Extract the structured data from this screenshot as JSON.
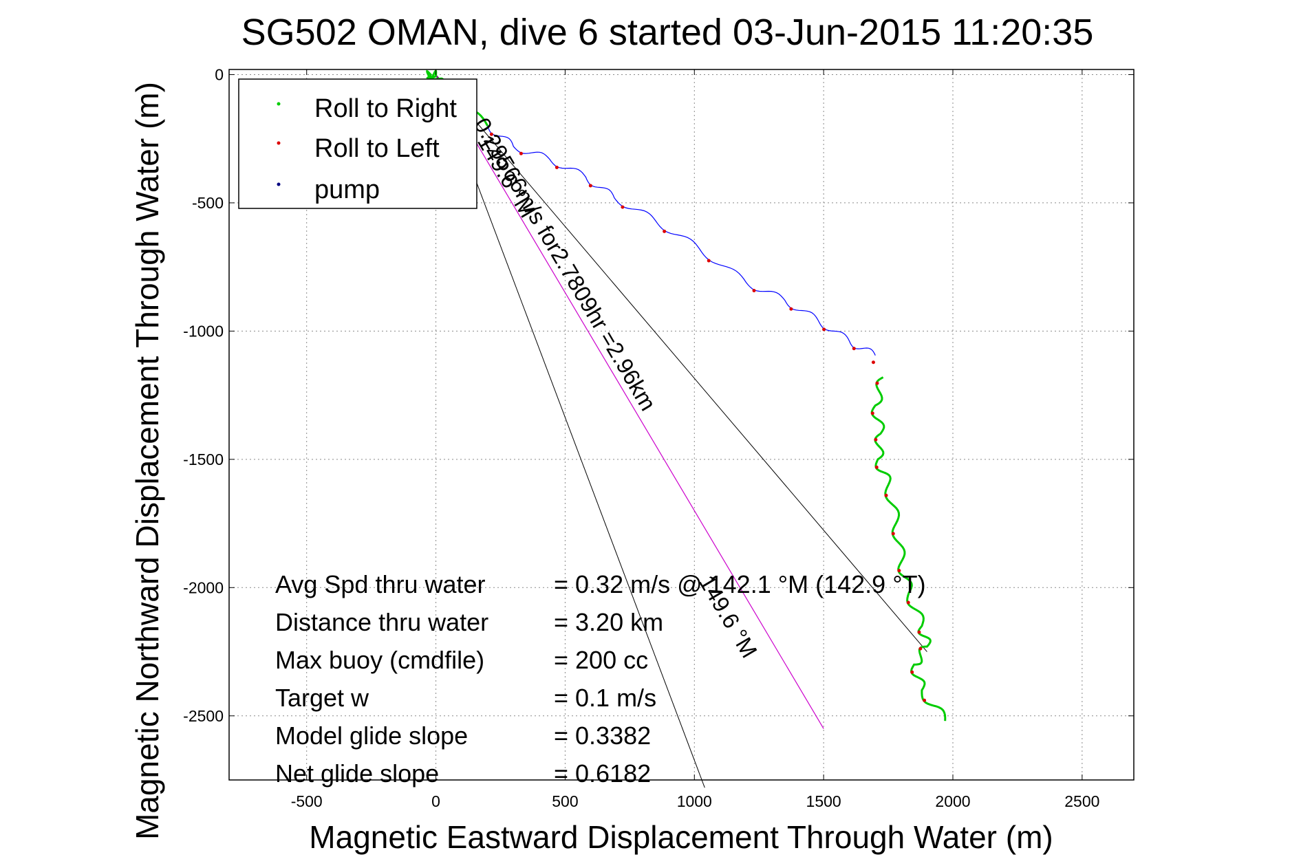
{
  "chart_data": {
    "type": "line",
    "title": "SG502 OMAN, dive 6 started 03-Jun-2015 11:20:35",
    "xlabel": "Magnetic Eastward Displacement Through Water (m)",
    "ylabel": "Magnetic Northward Displacement Through Water (m)",
    "xlim": [
      -800,
      2700
    ],
    "ylim": [
      -2750,
      20
    ],
    "xticks": [
      -500,
      0,
      500,
      1000,
      1500,
      2000,
      2500
    ],
    "yticks": [
      0,
      -500,
      -1000,
      -1500,
      -2000,
      -2500
    ],
    "xtick_labels": [
      "-500",
      "0",
      "500",
      "1000",
      "1500",
      "2000",
      "2500"
    ],
    "ytick_labels": [
      "0",
      "-500",
      "-1000",
      "-1500",
      "-2000",
      "-2500"
    ],
    "grid": true,
    "legend": {
      "placement": "top-left",
      "entries": [
        {
          "label": "Roll to Right",
          "color": "#00cc00"
        },
        {
          "label": "Roll to Left",
          "color": "#dd0000"
        },
        {
          "label": "pump",
          "color": "#000080"
        }
      ]
    },
    "series": [
      {
        "type": "track",
        "color_blue": "#0000ff",
        "color_green": "#00cc00",
        "color_red": "#dd0000",
        "points": [
          [
            -35,
            -10
          ],
          [
            -20,
            0
          ],
          [
            0,
            -5
          ],
          [
            10,
            -30
          ],
          [
            5,
            -60
          ],
          [
            200,
            -200
          ],
          [
            300,
            -280
          ],
          [
            440,
            -330
          ],
          [
            580,
            -400
          ],
          [
            690,
            -480
          ],
          [
            850,
            -570
          ],
          [
            1020,
            -680
          ],
          [
            1200,
            -810
          ],
          [
            1350,
            -880
          ],
          [
            1480,
            -960
          ],
          [
            1600,
            -1040
          ],
          [
            1700,
            -1095
          ],
          [
            1730,
            -1180
          ],
          [
            1700,
            -1290
          ],
          [
            1720,
            -1400
          ],
          [
            1710,
            -1500
          ],
          [
            1750,
            -1600
          ],
          [
            1780,
            -1750
          ],
          [
            1800,
            -1900
          ],
          [
            1830,
            -2020
          ],
          [
            1880,
            -2150
          ],
          [
            1900,
            -2230
          ],
          [
            1850,
            -2300
          ],
          [
            1880,
            -2400
          ],
          [
            1970,
            -2520
          ]
        ],
        "segments_blue": [
          [
            5,
            16
          ]
        ],
        "segments_green": [
          [
            0,
            5
          ],
          [
            17,
            29
          ]
        ]
      },
      {
        "name": "current",
        "type": "line",
        "color": "#cc00cc",
        "x": [
          0,
          1500
        ],
        "y": [
          0,
          -2550
        ]
      }
    ],
    "guide_lines": [
      {
        "x": [
          0,
          1040
        ],
        "y": [
          0,
          -2780
        ]
      },
      {
        "x": [
          0,
          1900
        ],
        "y": [
          0,
          -2250
        ]
      }
    ],
    "annotations": [
      {
        "text": "0.29566m/s for2.7809hr =2.96km",
        "rotation_deg": 59.5
      },
      {
        "text": "149.6 °M",
        "rotation_deg": 59.5
      },
      {
        "text": "149.6 °M",
        "rotation_deg": 59.5
      }
    ]
  },
  "stats": {
    "rows": [
      {
        "label": "Avg Spd thru water",
        "value": "=  0.32 m/s @ 142.1 °M (142.9 °T)"
      },
      {
        "label": "Distance thru water",
        "value": "=  3.20 km"
      },
      {
        "label": "Max buoy (cmdfile)",
        "value": "= 200 cc"
      },
      {
        "label": "Target w",
        "value": "= 0.1 m/s"
      },
      {
        "label": "Model glide slope",
        "value": "= 0.3382"
      },
      {
        "label": "Net glide slope",
        "value": "= 0.6182"
      }
    ]
  }
}
